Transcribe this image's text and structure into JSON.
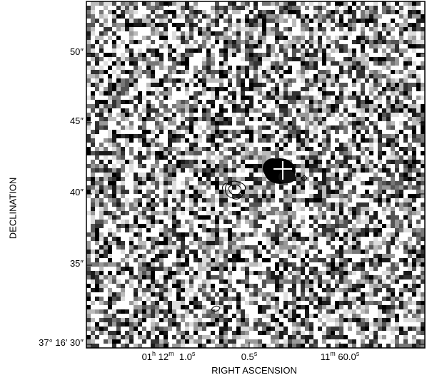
{
  "axes": {
    "ylabel": "DECLINATION",
    "xlabel": "RIGHT ASCENSION",
    "dec_ticks": [
      "50″",
      "45″",
      "40″",
      "35″",
      "37° 16′ 30″"
    ],
    "ra_ticks": [
      {
        "pre": "01",
        "h": "h",
        "mid": " 12",
        "m": "m",
        "post": "  1.0",
        "s": "s"
      },
      {
        "pre": "",
        "h": "",
        "mid": "",
        "m": "",
        "post": "0.5",
        "s": "s"
      },
      {
        "pre": "",
        "h": "",
        "mid": "11",
        "m": "m",
        "post": " 60.0",
        "s": "s"
      }
    ]
  },
  "image": {
    "colormap": "greyscale",
    "noise_style": "pixelated",
    "source_marker": "white-plus",
    "contour_color": "#000000"
  }
}
